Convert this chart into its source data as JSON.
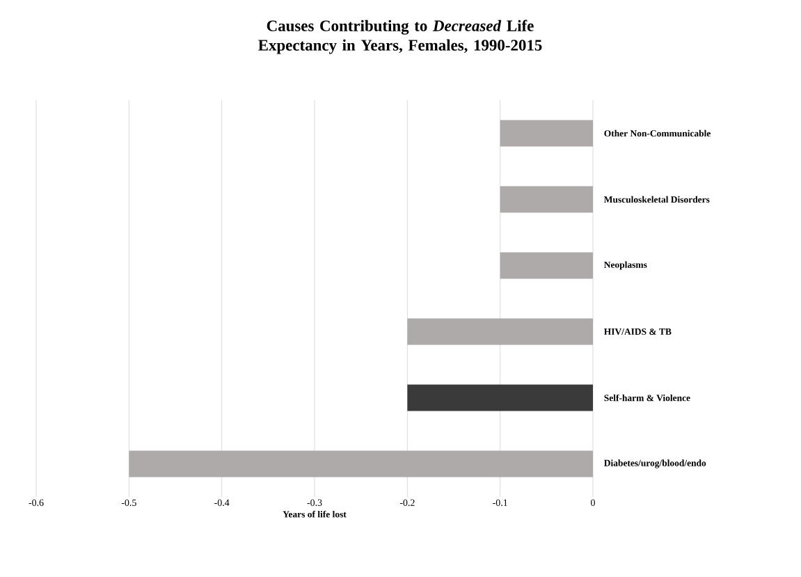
{
  "chart_data": {
    "type": "bar",
    "orientation": "horizontal",
    "title": "Causes Contributing to *Decreased* Life Expectancy in Years, Females, 1990-2015",
    "xlabel": "Years of life lost",
    "categories": [
      "Other Non-Communicable",
      "Musculoskeletal Disorders",
      "Neoplasms",
      "HIV/AIDS & TB",
      "Self-harm & Violence",
      "Diabetes/urog/blood/endo"
    ],
    "values": [
      -0.1,
      -0.1,
      -0.1,
      -0.2,
      -0.2,
      -0.5
    ],
    "colors": [
      "#aeaaaa",
      "#aeaaaa",
      "#aeaaaa",
      "#aeaaaa",
      "#3a3a3a",
      "#aeaaaa"
    ],
    "xlim": [
      -0.6,
      0
    ],
    "xticks": [
      -0.6,
      -0.5,
      -0.4,
      -0.3,
      -0.2,
      -0.1,
      0
    ],
    "grid": "x"
  }
}
